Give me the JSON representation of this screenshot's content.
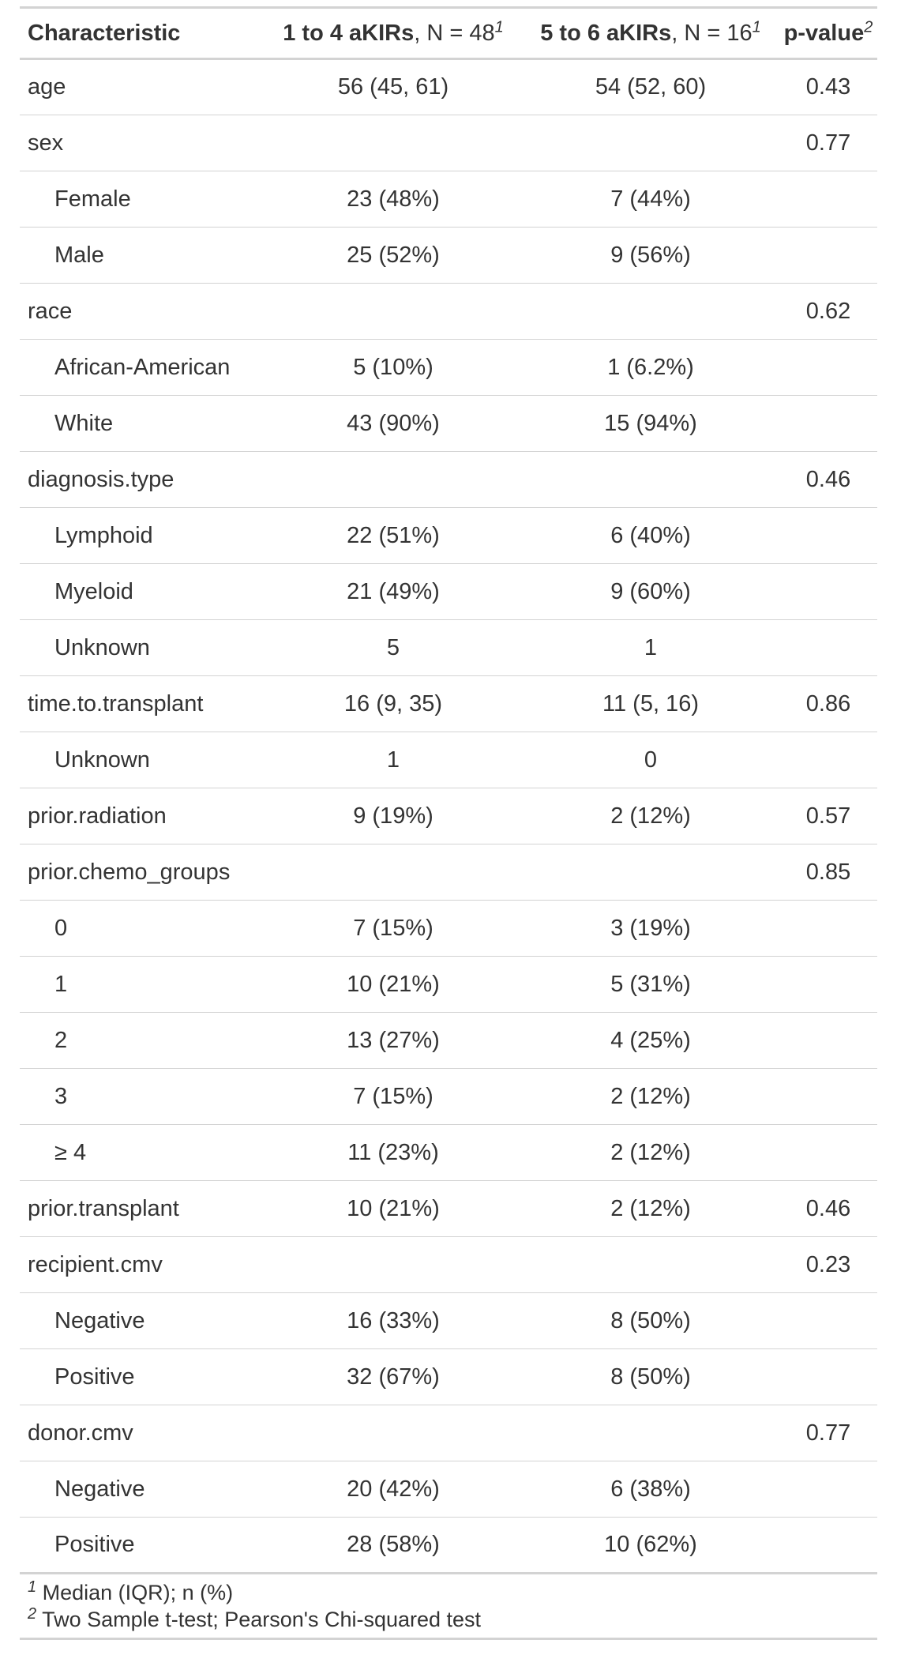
{
  "header": {
    "characteristic": "Characteristic",
    "group1_name": "1 to 4 aKIRs",
    "group1_n": ", N = 48",
    "group1_sup": "1",
    "group2_name": "5 to 6 aKIRs",
    "group2_n": ", N = 16",
    "group2_sup": "1",
    "pvalue": "p-value",
    "pvalue_sup": "2"
  },
  "rows": [
    {
      "label": "age",
      "indent": false,
      "g1": "56 (45, 61)",
      "g2": "54 (52, 60)",
      "p": "0.43"
    },
    {
      "label": "sex",
      "indent": false,
      "g1": "",
      "g2": "",
      "p": "0.77"
    },
    {
      "label": "Female",
      "indent": true,
      "g1": "23 (48%)",
      "g2": "7 (44%)",
      "p": ""
    },
    {
      "label": "Male",
      "indent": true,
      "g1": "25 (52%)",
      "g2": "9 (56%)",
      "p": ""
    },
    {
      "label": "race",
      "indent": false,
      "g1": "",
      "g2": "",
      "p": "0.62"
    },
    {
      "label": "African-American",
      "indent": true,
      "g1": "5 (10%)",
      "g2": "1 (6.2%)",
      "p": ""
    },
    {
      "label": "White",
      "indent": true,
      "g1": "43 (90%)",
      "g2": "15 (94%)",
      "p": ""
    },
    {
      "label": "diagnosis.type",
      "indent": false,
      "g1": "",
      "g2": "",
      "p": "0.46"
    },
    {
      "label": "Lymphoid",
      "indent": true,
      "g1": "22 (51%)",
      "g2": "6 (40%)",
      "p": ""
    },
    {
      "label": "Myeloid",
      "indent": true,
      "g1": "21 (49%)",
      "g2": "9 (60%)",
      "p": ""
    },
    {
      "label": "Unknown",
      "indent": true,
      "g1": "5",
      "g2": "1",
      "p": ""
    },
    {
      "label": "time.to.transplant",
      "indent": false,
      "g1": "16 (9, 35)",
      "g2": "11 (5, 16)",
      "p": "0.86"
    },
    {
      "label": "Unknown",
      "indent": true,
      "g1": "1",
      "g2": "0",
      "p": ""
    },
    {
      "label": "prior.radiation",
      "indent": false,
      "g1": "9 (19%)",
      "g2": "2 (12%)",
      "p": "0.57"
    },
    {
      "label": "prior.chemo_groups",
      "indent": false,
      "g1": "",
      "g2": "",
      "p": "0.85"
    },
    {
      "label": "0",
      "indent": true,
      "g1": "7 (15%)",
      "g2": "3 (19%)",
      "p": ""
    },
    {
      "label": "1",
      "indent": true,
      "g1": "10 (21%)",
      "g2": "5 (31%)",
      "p": ""
    },
    {
      "label": "2",
      "indent": true,
      "g1": "13 (27%)",
      "g2": "4 (25%)",
      "p": ""
    },
    {
      "label": "3",
      "indent": true,
      "g1": "7 (15%)",
      "g2": "2 (12%)",
      "p": ""
    },
    {
      "label": "≥ 4",
      "indent": true,
      "g1": "11 (23%)",
      "g2": "2 (12%)",
      "p": ""
    },
    {
      "label": "prior.transplant",
      "indent": false,
      "g1": "10 (21%)",
      "g2": "2 (12%)",
      "p": "0.46"
    },
    {
      "label": "recipient.cmv",
      "indent": false,
      "g1": "",
      "g2": "",
      "p": "0.23"
    },
    {
      "label": "Negative",
      "indent": true,
      "g1": "16 (33%)",
      "g2": "8 (50%)",
      "p": ""
    },
    {
      "label": "Positive",
      "indent": true,
      "g1": "32 (67%)",
      "g2": "8 (50%)",
      "p": ""
    },
    {
      "label": "donor.cmv",
      "indent": false,
      "g1": "",
      "g2": "",
      "p": "0.77"
    },
    {
      "label": "Negative",
      "indent": true,
      "g1": "20 (42%)",
      "g2": "6 (38%)",
      "p": ""
    },
    {
      "label": "Positive",
      "indent": true,
      "g1": "28 (58%)",
      "g2": "10 (62%)",
      "p": ""
    }
  ],
  "footnotes": [
    {
      "mark": "1",
      "text": " Median (IQR); n (%)"
    },
    {
      "mark": "2",
      "text": " Two Sample t-test; Pearson's Chi-squared test"
    }
  ]
}
